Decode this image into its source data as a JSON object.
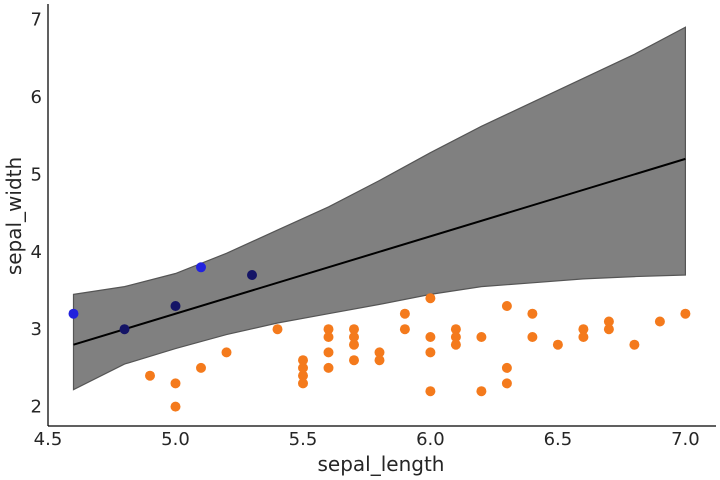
{
  "chart_data": {
    "type": "scatter",
    "xlabel": "sepal_length",
    "ylabel": "sepal_width",
    "xlim": [
      4.5,
      7.12
    ],
    "ylim": [
      1.75,
      7.2
    ],
    "x_ticks": [
      "4.5",
      "5.0",
      "5.5",
      "6.0",
      "6.5",
      "7.0"
    ],
    "y_ticks": [
      "2",
      "3",
      "4",
      "5",
      "6",
      "7"
    ],
    "grid": false,
    "band": {
      "color": "#808080",
      "x": [
        4.6,
        4.8,
        5.0,
        5.2,
        5.4,
        5.6,
        5.8,
        6.0,
        6.2,
        6.4,
        6.6,
        6.8,
        7.0
      ],
      "upper": [
        3.45,
        3.55,
        3.72,
        3.98,
        4.28,
        4.58,
        4.92,
        5.28,
        5.62,
        5.93,
        6.24,
        6.55,
        6.9
      ],
      "lower": [
        2.22,
        2.55,
        2.75,
        2.93,
        3.08,
        3.2,
        3.32,
        3.45,
        3.55,
        3.6,
        3.65,
        3.68,
        3.7
      ]
    },
    "line": {
      "color": "#000000",
      "x": [
        4.6,
        7.0
      ],
      "y": [
        2.8,
        5.2
      ]
    },
    "series": [
      {
        "color": "#2222dd",
        "points": [
          [
            4.6,
            3.2
          ],
          [
            5.1,
            3.8
          ]
        ]
      },
      {
        "color": "#141466",
        "points": [
          [
            4.8,
            3.0
          ],
          [
            5.0,
            3.3
          ],
          [
            5.3,
            3.7
          ]
        ]
      },
      {
        "color": "#f47a1c",
        "points": [
          [
            4.9,
            2.4
          ],
          [
            5.0,
            2.3
          ],
          [
            5.0,
            2.0
          ],
          [
            5.1,
            2.5
          ],
          [
            5.2,
            2.7
          ],
          [
            5.4,
            3.0
          ],
          [
            5.5,
            2.6
          ],
          [
            5.5,
            2.5
          ],
          [
            5.5,
            2.4
          ],
          [
            5.5,
            2.3
          ],
          [
            5.6,
            3.0
          ],
          [
            5.6,
            2.9
          ],
          [
            5.6,
            2.7
          ],
          [
            5.6,
            2.5
          ],
          [
            5.7,
            3.0
          ],
          [
            5.7,
            2.9
          ],
          [
            5.7,
            2.8
          ],
          [
            5.7,
            2.6
          ],
          [
            5.8,
            2.7
          ],
          [
            5.8,
            2.6
          ],
          [
            5.9,
            3.2
          ],
          [
            5.9,
            3.0
          ],
          [
            6.0,
            3.4
          ],
          [
            6.0,
            2.9
          ],
          [
            6.0,
            2.7
          ],
          [
            6.0,
            2.2
          ],
          [
            6.1,
            3.0
          ],
          [
            6.1,
            2.9
          ],
          [
            6.1,
            2.8
          ],
          [
            6.2,
            2.9
          ],
          [
            6.2,
            2.2
          ],
          [
            6.3,
            3.3
          ],
          [
            6.3,
            2.5
          ],
          [
            6.3,
            2.3
          ],
          [
            6.4,
            3.2
          ],
          [
            6.4,
            2.9
          ],
          [
            6.5,
            2.8
          ],
          [
            6.6,
            3.0
          ],
          [
            6.6,
            2.9
          ],
          [
            6.7,
            3.1
          ],
          [
            6.7,
            3.0
          ],
          [
            6.8,
            2.8
          ],
          [
            6.9,
            3.1
          ],
          [
            7.0,
            3.2
          ]
        ]
      }
    ]
  }
}
